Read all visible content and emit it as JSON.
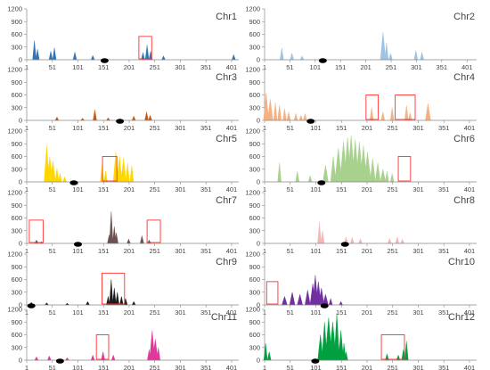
{
  "chart_data": [
    {
      "type": "area",
      "title": "Chr1",
      "color": "#2e75b6",
      "yticks": [
        0,
        300,
        600,
        900,
        1200
      ],
      "xticks": [
        1,
        51,
        101,
        151,
        201,
        251,
        301,
        351,
        401
      ],
      "xlim": [
        1,
        415
      ],
      "peaks": [
        [
          16,
          450,
          2
        ],
        [
          22,
          250,
          2
        ],
        [
          48,
          200,
          2
        ],
        [
          55,
          280,
          2
        ],
        [
          95,
          180,
          2
        ],
        [
          130,
          100,
          2
        ],
        [
          228,
          170,
          2
        ],
        [
          236,
          350,
          2
        ],
        [
          243,
          200,
          2
        ],
        [
          268,
          90,
          2
        ],
        [
          405,
          120,
          2
        ]
      ],
      "centromere": 153,
      "highlights": [
        [
          220,
          245,
          0,
          550
        ]
      ]
    },
    {
      "type": "area",
      "title": "Chr2",
      "color": "#9dc3e6",
      "yticks": [
        0,
        300,
        600,
        900,
        1200
      ],
      "xticks": [
        1,
        51,
        101,
        151,
        201,
        251,
        301,
        351,
        401
      ],
      "xlim": [
        1,
        420
      ],
      "peaks": [
        [
          35,
          280,
          2
        ],
        [
          55,
          160,
          2
        ],
        [
          75,
          90,
          2
        ],
        [
          235,
          650,
          3
        ],
        [
          242,
          400,
          2
        ],
        [
          250,
          150,
          2
        ],
        [
          300,
          220,
          2
        ],
        [
          312,
          180,
          2
        ]
      ],
      "centromere": 116,
      "highlights": []
    },
    {
      "type": "area",
      "title": "Chr3",
      "color": "#c55a11",
      "yticks": [
        0,
        300,
        600,
        900,
        1200
      ],
      "xticks": [
        1,
        51,
        101,
        151,
        201,
        251,
        301,
        351,
        401
      ],
      "xlim": [
        1,
        415
      ],
      "peaks": [
        [
          60,
          80,
          2
        ],
        [
          110,
          50,
          2
        ],
        [
          134,
          250,
          2
        ],
        [
          160,
          60,
          2
        ],
        [
          210,
          100,
          2
        ],
        [
          235,
          200,
          2
        ],
        [
          242,
          120,
          2
        ]
      ],
      "centromere": 183,
      "highlights": []
    },
    {
      "type": "area",
      "title": "Chr4",
      "color": "#f4b183",
      "yticks": [
        0,
        300,
        600,
        900,
        1200
      ],
      "xticks": [
        1,
        51,
        101,
        151,
        201,
        251,
        301,
        351,
        401
      ],
      "xlim": [
        1,
        415
      ],
      "peaks": [
        [
          4,
          650,
          3
        ],
        [
          12,
          500,
          3
        ],
        [
          22,
          420,
          2
        ],
        [
          30,
          360,
          2
        ],
        [
          40,
          280,
          2
        ],
        [
          48,
          200,
          2
        ],
        [
          62,
          160,
          2
        ],
        [
          72,
          120,
          2
        ],
        [
          80,
          160,
          2
        ],
        [
          210,
          300,
          2
        ],
        [
          232,
          200,
          2
        ],
        [
          250,
          300,
          2
        ],
        [
          278,
          350,
          2
        ],
        [
          285,
          180,
          2
        ],
        [
          320,
          400,
          3
        ]
      ],
      "centromere": 91,
      "highlights": [
        [
          199,
          223,
          0,
          600
        ],
        [
          256,
          295,
          0,
          600
        ]
      ]
    },
    {
      "type": "area",
      "title": "Chr5",
      "color": "#ffd700",
      "yticks": [
        0,
        300,
        600,
        900,
        1200
      ],
      "xticks": [
        1,
        51,
        101,
        151,
        201,
        251,
        301,
        351,
        401
      ],
      "xlim": [
        1,
        415
      ],
      "peaks": [
        [
          40,
          850,
          3
        ],
        [
          46,
          600,
          3
        ],
        [
          52,
          500,
          3
        ],
        [
          60,
          320,
          2
        ],
        [
          66,
          200,
          2
        ],
        [
          75,
          120,
          2
        ],
        [
          148,
          400,
          2
        ],
        [
          155,
          250,
          2
        ],
        [
          175,
          700,
          3
        ],
        [
          182,
          600,
          3
        ],
        [
          190,
          560,
          3
        ],
        [
          198,
          450,
          2
        ],
        [
          206,
          380,
          2
        ]
      ],
      "centromere": 93,
      "highlights": [
        [
          149,
          177,
          0,
          600
        ]
      ]
    },
    {
      "type": "area",
      "title": "Chr6",
      "color": "#a9d18e",
      "yticks": [
        0,
        300,
        600,
        900,
        1200
      ],
      "xticks": [
        1,
        51,
        101,
        151,
        201,
        251,
        301,
        351,
        401
      ],
      "xlim": [
        1,
        415
      ],
      "peaks": [
        [
          30,
          450,
          2
        ],
        [
          65,
          250,
          2
        ],
        [
          90,
          150,
          2
        ],
        [
          120,
          400,
          3
        ],
        [
          135,
          600,
          3
        ],
        [
          145,
          800,
          4
        ],
        [
          155,
          950,
          4
        ],
        [
          163,
          1050,
          4
        ],
        [
          170,
          1100,
          4
        ],
        [
          178,
          1000,
          4
        ],
        [
          186,
          950,
          4
        ],
        [
          194,
          850,
          4
        ],
        [
          202,
          700,
          4
        ],
        [
          212,
          550,
          3
        ],
        [
          222,
          450,
          3
        ],
        [
          232,
          300,
          3
        ],
        [
          240,
          250,
          2
        ],
        [
          250,
          200,
          2
        ]
      ],
      "centromere": 112,
      "highlights": [
        [
          262,
          286,
          0,
          600
        ]
      ]
    },
    {
      "type": "area",
      "title": "Chr7",
      "color": "#6d5050",
      "yticks": [
        0,
        300,
        600,
        900,
        1200
      ],
      "xticks": [
        1,
        51,
        101,
        151,
        201,
        251,
        301,
        351,
        401
      ],
      "xlim": [
        1,
        415
      ],
      "peaks": [
        [
          20,
          80,
          2
        ],
        [
          30,
          40,
          2
        ],
        [
          162,
          200,
          2
        ],
        [
          166,
          750,
          2
        ],
        [
          172,
          400,
          2
        ],
        [
          176,
          250,
          2
        ],
        [
          200,
          100,
          2
        ],
        [
          226,
          180,
          2
        ],
        [
          240,
          80,
          2
        ]
      ],
      "centromere": 101,
      "highlights": [
        [
          6,
          33,
          0,
          550
        ],
        [
          236,
          262,
          0,
          550
        ]
      ]
    },
    {
      "type": "area",
      "title": "Chr8",
      "color": "#f4b6b6",
      "yticks": [
        0,
        300,
        600,
        900,
        1200
      ],
      "xticks": [
        1,
        51,
        101,
        151,
        201,
        251,
        301,
        351,
        401
      ],
      "xlim": [
        1,
        415
      ],
      "peaks": [
        [
          108,
          500,
          2
        ],
        [
          114,
          300,
          2
        ],
        [
          160,
          150,
          2
        ],
        [
          172,
          140,
          2
        ],
        [
          188,
          110,
          2
        ],
        [
          245,
          120,
          2
        ],
        [
          260,
          150,
          2
        ],
        [
          270,
          100,
          2
        ]
      ],
      "centromere": 158,
      "highlights": []
    },
    {
      "type": "area",
      "title": "Chr9",
      "color": "#1a1a1a",
      "yticks": [
        0,
        300,
        600,
        900,
        1200
      ],
      "xticks": [
        1,
        51,
        101,
        151,
        201,
        251,
        301,
        351,
        401
      ],
      "xlim": [
        1,
        415
      ],
      "peaks": [
        [
          10,
          60,
          2
        ],
        [
          40,
          50,
          2
        ],
        [
          80,
          40,
          2
        ],
        [
          120,
          80,
          2
        ],
        [
          160,
          200,
          2
        ],
        [
          166,
          600,
          2
        ],
        [
          172,
          400,
          2
        ],
        [
          178,
          300,
          2
        ],
        [
          186,
          200,
          2
        ],
        [
          194,
          150,
          2
        ],
        [
          210,
          80,
          2
        ]
      ],
      "centromere": 10,
      "highlights": [
        [
          148,
          192,
          0,
          750
        ]
      ]
    },
    {
      "type": "area",
      "title": "Chr10",
      "color": "#7030a0",
      "yticks": [
        0,
        300,
        600,
        900,
        1200
      ],
      "xticks": [
        1,
        51,
        101,
        151,
        201,
        251,
        301,
        351,
        401
      ],
      "xlim": [
        1,
        415
      ],
      "peaks": [
        [
          40,
          200,
          3
        ],
        [
          55,
          300,
          3
        ],
        [
          70,
          250,
          3
        ],
        [
          85,
          350,
          3
        ],
        [
          95,
          500,
          3
        ],
        [
          100,
          700,
          3
        ],
        [
          106,
          550,
          3
        ],
        [
          112,
          400,
          3
        ],
        [
          120,
          250,
          3
        ],
        [
          130,
          150,
          2
        ],
        [
          150,
          80,
          2
        ]
      ],
      "centromere": 118,
      "highlights": [
        [
          5,
          27,
          0,
          550
        ]
      ]
    },
    {
      "type": "area",
      "title": "Chr11",
      "color": "#e0389a",
      "yticks": [
        0,
        300,
        600,
        900,
        1200
      ],
      "xticks": [
        1,
        51,
        101,
        151,
        201,
        251,
        301,
        351,
        401
      ],
      "xlim": [
        1,
        415
      ],
      "peaks": [
        [
          20,
          80,
          2
        ],
        [
          45,
          100,
          2
        ],
        [
          80,
          60,
          2
        ],
        [
          130,
          120,
          2
        ],
        [
          150,
          200,
          2
        ],
        [
          170,
          120,
          2
        ],
        [
          240,
          250,
          2
        ],
        [
          246,
          700,
          3
        ],
        [
          252,
          500,
          3
        ],
        [
          258,
          300,
          2
        ]
      ],
      "centromere": 66,
      "highlights": [
        [
          137,
          161,
          0,
          600
        ]
      ]
    },
    {
      "type": "area",
      "title": "Chr12",
      "color": "#00a040",
      "yticks": [
        0,
        300,
        600,
        900,
        1200
      ],
      "xticks": [
        1,
        51,
        101,
        151,
        201,
        251,
        301,
        351,
        401
      ],
      "xlim": [
        1,
        415
      ],
      "peaks": [
        [
          3,
          400,
          2
        ],
        [
          10,
          200,
          2
        ],
        [
          110,
          600,
          3
        ],
        [
          118,
          900,
          3
        ],
        [
          126,
          1000,
          4
        ],
        [
          134,
          900,
          4
        ],
        [
          142,
          1100,
          3
        ],
        [
          150,
          700,
          3
        ],
        [
          156,
          400,
          2
        ],
        [
          160,
          200,
          2
        ],
        [
          240,
          150,
          2
        ],
        [
          262,
          120,
          2
        ],
        [
          272,
          250,
          2
        ],
        [
          278,
          450,
          2
        ]
      ],
      "centromere": 100,
      "highlights": [
        [
          229,
          274,
          0,
          600
        ]
      ]
    }
  ]
}
